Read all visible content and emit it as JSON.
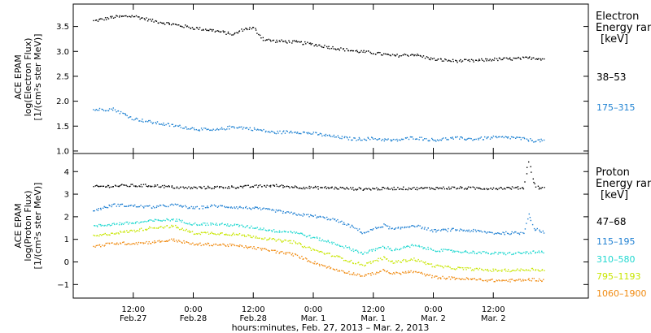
{
  "chart_data": [
    {
      "type": "scatter",
      "panel": "electron",
      "ylabel": [
        "ACE EPAM",
        "log(Electron Flux)",
        "[1/(cm²s ster MeV)]"
      ],
      "ylim": [
        0.95,
        3.95
      ],
      "yticks": [
        1.0,
        1.5,
        2.0,
        2.5,
        3.0,
        3.5
      ],
      "ytick_labels": [
        "1.0",
        "1.5",
        "2.0",
        "2.5",
        "3.0",
        "3.5"
      ],
      "legend_title": [
        "Electron",
        "Energy ranges",
        "[keV]"
      ],
      "series": [
        {
          "name": "38–53",
          "color": "#000000",
          "x_hours": [
            0,
            4,
            8,
            12,
            16,
            20,
            24,
            28,
            30,
            32,
            34,
            36,
            40,
            44,
            48,
            52,
            56,
            60,
            64,
            68,
            72,
            76,
            80,
            84,
            88,
            90
          ],
          "values": [
            3.62,
            3.7,
            3.72,
            3.62,
            3.55,
            3.48,
            3.43,
            3.35,
            3.46,
            3.48,
            3.25,
            3.22,
            3.2,
            3.15,
            3.08,
            3.02,
            2.98,
            2.92,
            2.95,
            2.85,
            2.82,
            2.82,
            2.85,
            2.86,
            2.88,
            2.86
          ]
        },
        {
          "name": "175–315",
          "color": "#1e82d2",
          "x_hours": [
            0,
            4,
            8,
            12,
            16,
            20,
            24,
            28,
            32,
            36,
            40,
            44,
            48,
            52,
            56,
            60,
            64,
            68,
            72,
            76,
            80,
            84,
            88,
            90
          ],
          "values": [
            1.84,
            1.85,
            1.66,
            1.58,
            1.52,
            1.46,
            1.42,
            1.5,
            1.45,
            1.38,
            1.4,
            1.36,
            1.3,
            1.25,
            1.26,
            1.22,
            1.28,
            1.23,
            1.27,
            1.25,
            1.28,
            1.28,
            1.22,
            1.22
          ]
        }
      ]
    },
    {
      "type": "scatter",
      "panel": "proton",
      "ylabel": [
        "ACE EPAM",
        "log(Proton Flux)",
        "[1/(cm²s ster MeV)]"
      ],
      "ylim": [
        -1.6,
        4.8
      ],
      "yticks": [
        -1,
        0,
        1,
        2,
        3,
        4
      ],
      "ytick_labels": [
        "−1",
        "0",
        "1",
        "2",
        "3",
        "4"
      ],
      "legend_title": [
        "Proton",
        "Energy ranges",
        "[keV]"
      ],
      "series": [
        {
          "name": "47–68",
          "color": "#000000",
          "x_hours": [
            0,
            6,
            12,
            18,
            24,
            30,
            36,
            42,
            48,
            54,
            60,
            66,
            72,
            78,
            84,
            86,
            87,
            88,
            89,
            90
          ],
          "values": [
            3.35,
            3.4,
            3.4,
            3.3,
            3.32,
            3.35,
            3.4,
            3.32,
            3.3,
            3.25,
            3.28,
            3.28,
            3.3,
            3.28,
            3.3,
            3.3,
            4.5,
            3.5,
            3.3,
            3.28
          ]
        },
        {
          "name": "115–195",
          "color": "#1e7fd2",
          "x_hours": [
            0,
            4,
            8,
            12,
            16,
            20,
            24,
            28,
            32,
            36,
            40,
            44,
            48,
            52,
            54,
            58,
            60,
            64,
            68,
            72,
            76,
            80,
            84,
            86,
            87,
            88,
            90
          ],
          "values": [
            2.3,
            2.55,
            2.5,
            2.45,
            2.55,
            2.4,
            2.5,
            2.45,
            2.4,
            2.3,
            2.15,
            2.05,
            1.9,
            1.55,
            1.3,
            1.65,
            1.45,
            1.65,
            1.4,
            1.45,
            1.4,
            1.3,
            1.3,
            1.3,
            2.2,
            1.5,
            1.35
          ]
        },
        {
          "name": "310–580",
          "color": "#20d8d0",
          "x_hours": [
            0,
            4,
            8,
            12,
            16,
            20,
            24,
            28,
            32,
            36,
            40,
            44,
            48,
            52,
            54,
            58,
            60,
            64,
            68,
            72,
            76,
            80,
            84,
            88,
            90
          ],
          "values": [
            1.6,
            1.7,
            1.75,
            1.85,
            1.9,
            1.7,
            1.7,
            1.65,
            1.55,
            1.4,
            1.35,
            1.1,
            0.85,
            0.55,
            0.4,
            0.7,
            0.55,
            0.75,
            0.55,
            0.5,
            0.45,
            0.4,
            0.4,
            0.45,
            0.45
          ]
        },
        {
          "name": "795–1193",
          "color": "#c8e600",
          "x_hours": [
            0,
            4,
            8,
            12,
            16,
            20,
            24,
            28,
            32,
            36,
            40,
            44,
            48,
            52,
            54,
            58,
            60,
            64,
            68,
            72,
            76,
            80,
            84,
            88,
            90
          ],
          "values": [
            1.15,
            1.3,
            1.4,
            1.55,
            1.6,
            1.3,
            1.3,
            1.25,
            1.15,
            1.0,
            0.9,
            0.55,
            0.3,
            0.0,
            -0.1,
            0.2,
            0.0,
            0.15,
            -0.15,
            -0.25,
            -0.3,
            -0.35,
            -0.35,
            -0.3,
            -0.35
          ]
        },
        {
          "name": "1060–1900",
          "color": "#f08a10",
          "x_hours": [
            0,
            4,
            8,
            12,
            16,
            20,
            24,
            28,
            32,
            36,
            40,
            44,
            48,
            52,
            54,
            58,
            60,
            64,
            68,
            72,
            76,
            80,
            84,
            88,
            90
          ],
          "values": [
            0.7,
            0.85,
            0.85,
            0.9,
            1.0,
            0.8,
            0.8,
            0.75,
            0.65,
            0.5,
            0.35,
            0.0,
            -0.3,
            -0.5,
            -0.6,
            -0.35,
            -0.5,
            -0.4,
            -0.65,
            -0.7,
            -0.75,
            -0.8,
            -0.8,
            -0.75,
            -0.8
          ]
        }
      ]
    }
  ],
  "x_axis": {
    "range_hours": [
      -4,
      99
    ],
    "ticks": [
      {
        "h": 8,
        "top": "12:00",
        "bottom": "Feb.27"
      },
      {
        "h": 20,
        "top": "0:00",
        "bottom": "Feb.28"
      },
      {
        "h": 32,
        "top": "12:00",
        "bottom": "Feb.28"
      },
      {
        "h": 44,
        "top": "0:00",
        "bottom": "Mar. 1"
      },
      {
        "h": 56,
        "top": "12:00",
        "bottom": "Mar. 1"
      },
      {
        "h": 68,
        "top": "0:00",
        "bottom": "Mar. 2"
      },
      {
        "h": 80,
        "top": "12:00",
        "bottom": "Mar. 2"
      }
    ],
    "xlabel": "hours:minutes, Feb. 27, 2013 – Mar.  2, 2013"
  }
}
